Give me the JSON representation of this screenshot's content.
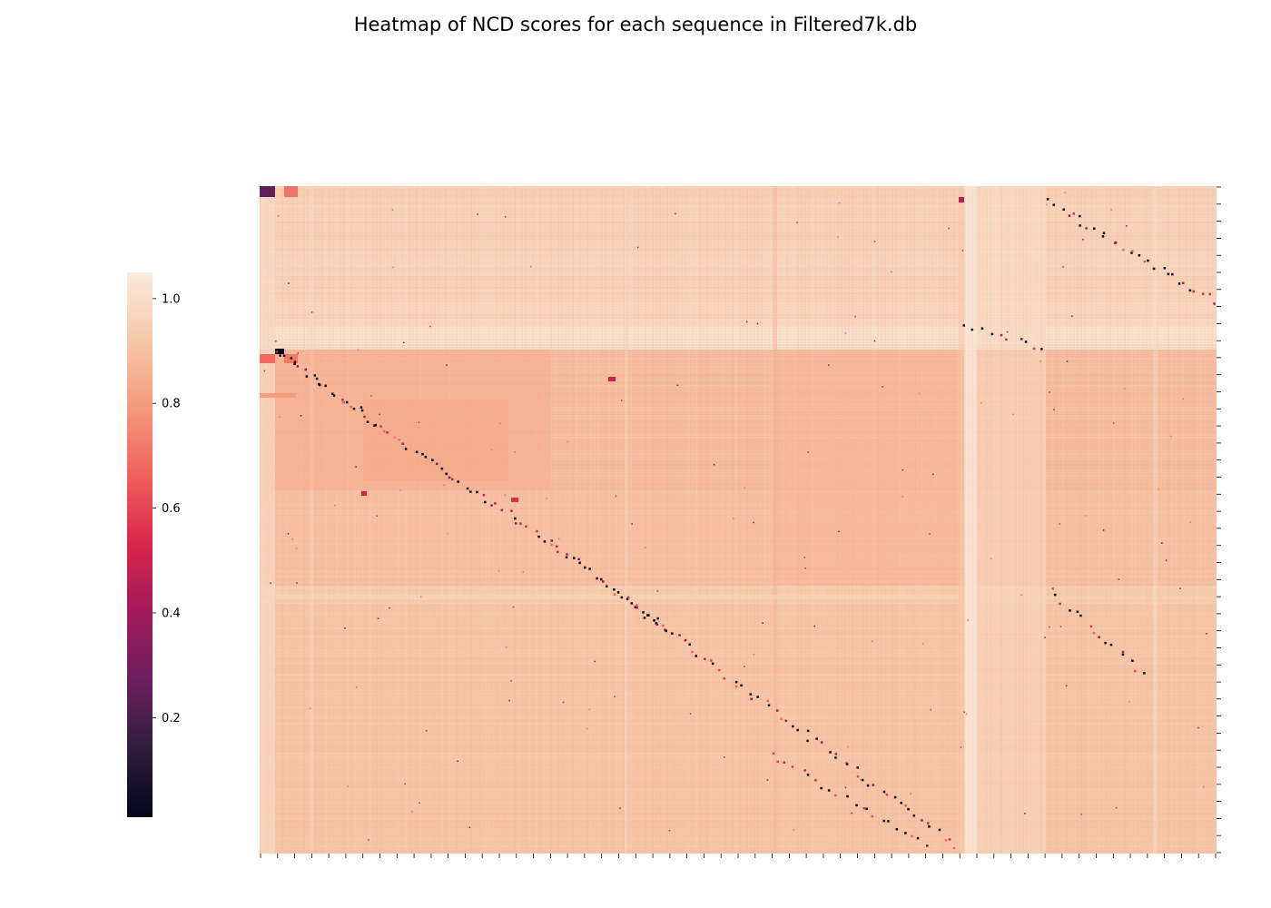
{
  "chart_data": {
    "type": "heatmap",
    "title": "Heatmap of NCD scores for each sequence in Filtered7k.db",
    "xlabel": "",
    "ylabel": "",
    "x_tick_labels_shown": false,
    "y_tick_labels_shown": false,
    "colormap": "rocket",
    "colorbar": {
      "vmin": 0.01,
      "vmax": 1.05,
      "ticks": [
        0.2,
        0.4,
        0.6,
        0.8,
        1.0
      ],
      "tick_labels": [
        "0.2",
        "0.4",
        "0.6",
        "0.8",
        "1.0"
      ],
      "position": "left"
    },
    "matrix_summary": {
      "diagonal_value": 0.0,
      "background_value": 0.9,
      "high_similarity_block_value": 1.0,
      "off_diagonal_low_values": [
        0.3,
        0.5,
        0.7
      ]
    }
  },
  "colors": {
    "cmap_stops": [
      "#03051a",
      "#2e1e3b",
      "#6b1e5e",
      "#a11a5b",
      "#d72549",
      "#f0605d",
      "#f4997b",
      "#f6c8aa",
      "#faebdd"
    ]
  }
}
